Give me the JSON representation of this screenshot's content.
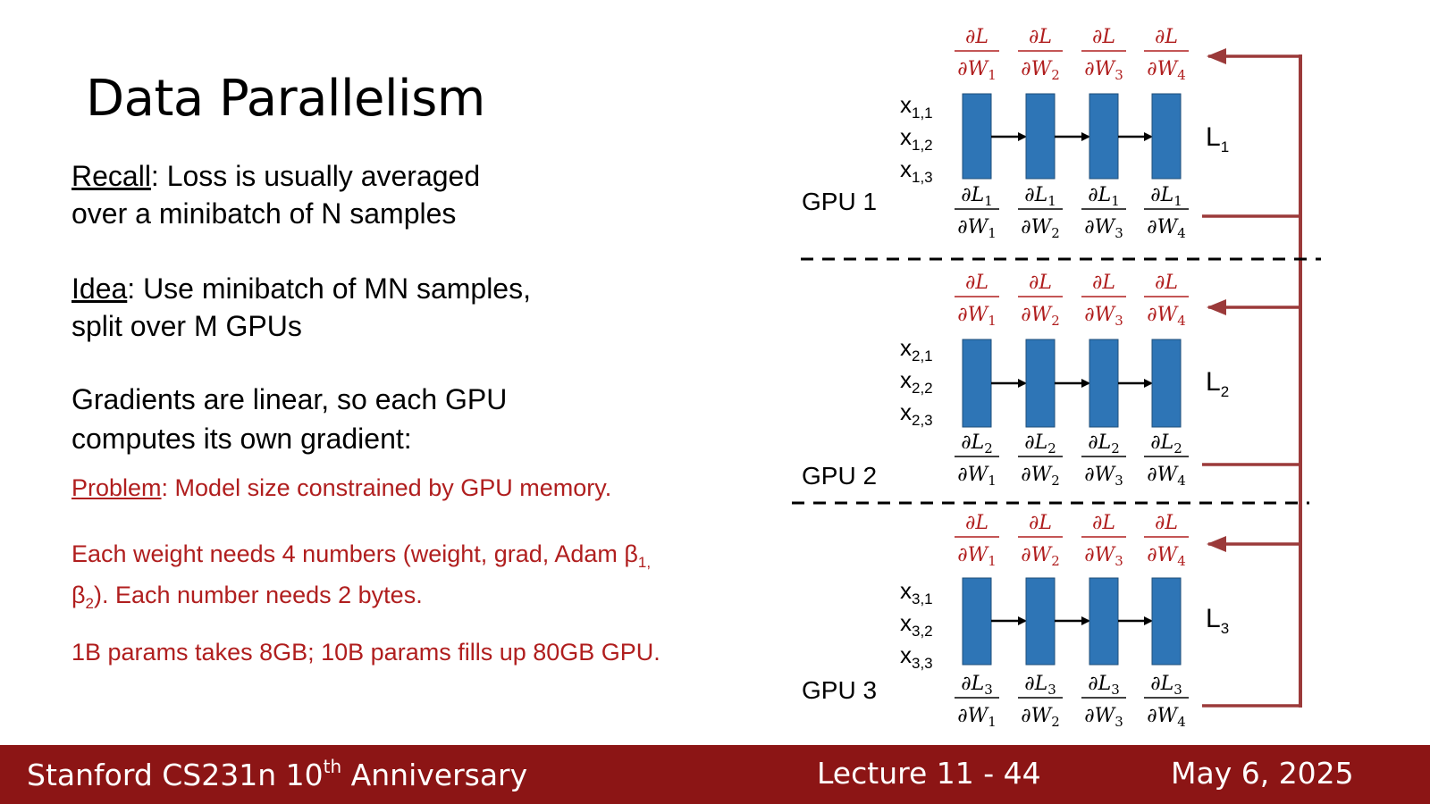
{
  "slide": {
    "title": "Data Parallelism",
    "recall_label": "Recall",
    "recall_text1": ": Loss is usually averaged",
    "recall_text2": "over a minibatch of N samples",
    "idea_label": "Idea",
    "idea_text1": ": Use minibatch of MN samples,",
    "idea_text2": "split over M GPUs",
    "grad_text1": "Gradients are linear, so each GPU",
    "grad_text2": "computes its own gradient:",
    "problem_label": "Problem",
    "problem_text": ": Model size constrained by GPU memory.",
    "weight_text_a": "Each weight needs 4 numbers (weight, grad, Adam β",
    "weight_sub1": "1,",
    "weight_text_b": "β",
    "weight_sub2": "2",
    "weight_text_c": "). Each number needs 2 bytes.",
    "params_text": "1B params takes 8GB; 10B params fills up 80GB GPU."
  },
  "diagram": {
    "d": "∂",
    "L": "L",
    "W": "W",
    "gpus": [
      {
        "label": "GPU 1",
        "loss": "L",
        "loss_sub": "1",
        "inputs": [
          {
            "x": "x",
            "sub": "1,1"
          },
          {
            "x": "x",
            "sub": "1,2"
          },
          {
            "x": "x",
            "sub": "1,3"
          }
        ]
      },
      {
        "label": "GPU 2",
        "loss": "L",
        "loss_sub": "2",
        "inputs": [
          {
            "x": "x",
            "sub": "2,1"
          },
          {
            "x": "x",
            "sub": "2,2"
          },
          {
            "x": "x",
            "sub": "2,3"
          }
        ]
      },
      {
        "label": "GPU 3",
        "loss": "L",
        "loss_sub": "3",
        "inputs": [
          {
            "x": "x",
            "sub": "3,1"
          },
          {
            "x": "x",
            "sub": "3,2"
          },
          {
            "x": "x",
            "sub": "3,3"
          }
        ]
      }
    ],
    "weight_subs": [
      "1",
      "2",
      "3",
      "4"
    ],
    "colors": {
      "layer": "#2e75b6",
      "red": "#b01e1e",
      "arrow_line": "#9b3a3a"
    }
  },
  "footer": {
    "course": "Stanford CS231n 10",
    "course_sup": "th",
    "course_tail": " Anniversary",
    "lecture": "Lecture 11 -  44",
    "date": "May 6, 2025"
  }
}
